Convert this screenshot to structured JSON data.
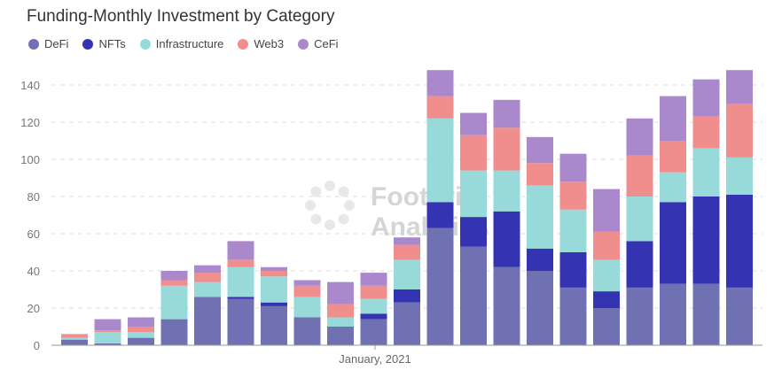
{
  "chart_data": {
    "type": "bar",
    "stacked": true,
    "title": "Funding-Monthly Investment by Category",
    "xlabel": "",
    "ylabel": "",
    "x_tick_label": "January, 2021",
    "ylim": [
      0,
      150
    ],
    "yticks": [
      0,
      20,
      40,
      60,
      80,
      100,
      120,
      140
    ],
    "grid": true,
    "legend_position": "top-left",
    "watermark": "Footprint Analytics",
    "series": [
      {
        "name": "DeFi",
        "color": "#7071b3",
        "values": [
          3,
          1,
          4,
          14,
          26,
          25,
          21,
          15,
          10,
          14,
          23,
          63,
          53,
          42,
          40,
          31,
          20,
          31,
          33,
          33,
          31
        ]
      },
      {
        "name": "NFTs",
        "color": "#3434b2",
        "values": [
          0,
          0,
          0,
          0,
          0,
          1,
          2,
          0,
          0,
          3,
          7,
          14,
          16,
          30,
          12,
          19,
          9,
          25,
          44,
          47,
          50
        ]
      },
      {
        "name": "Infrastructure",
        "color": "#97dad9",
        "values": [
          1,
          6,
          3,
          18,
          8,
          16,
          14,
          11,
          5,
          8,
          16,
          45,
          25,
          22,
          34,
          23,
          17,
          24,
          16,
          26,
          20
        ]
      },
      {
        "name": "Web3",
        "color": "#f08d8d",
        "values": [
          2,
          1,
          3,
          3,
          5,
          4,
          3,
          6,
          7,
          7,
          8,
          12,
          19,
          23,
          12,
          15,
          15,
          22,
          17,
          17,
          29
        ]
      },
      {
        "name": "CeFi",
        "color": "#a988cb",
        "values": [
          0,
          6,
          5,
          5,
          4,
          10,
          2,
          3,
          12,
          7,
          4,
          14,
          12,
          15,
          14,
          15,
          23,
          20,
          24,
          20,
          18
        ]
      }
    ]
  }
}
